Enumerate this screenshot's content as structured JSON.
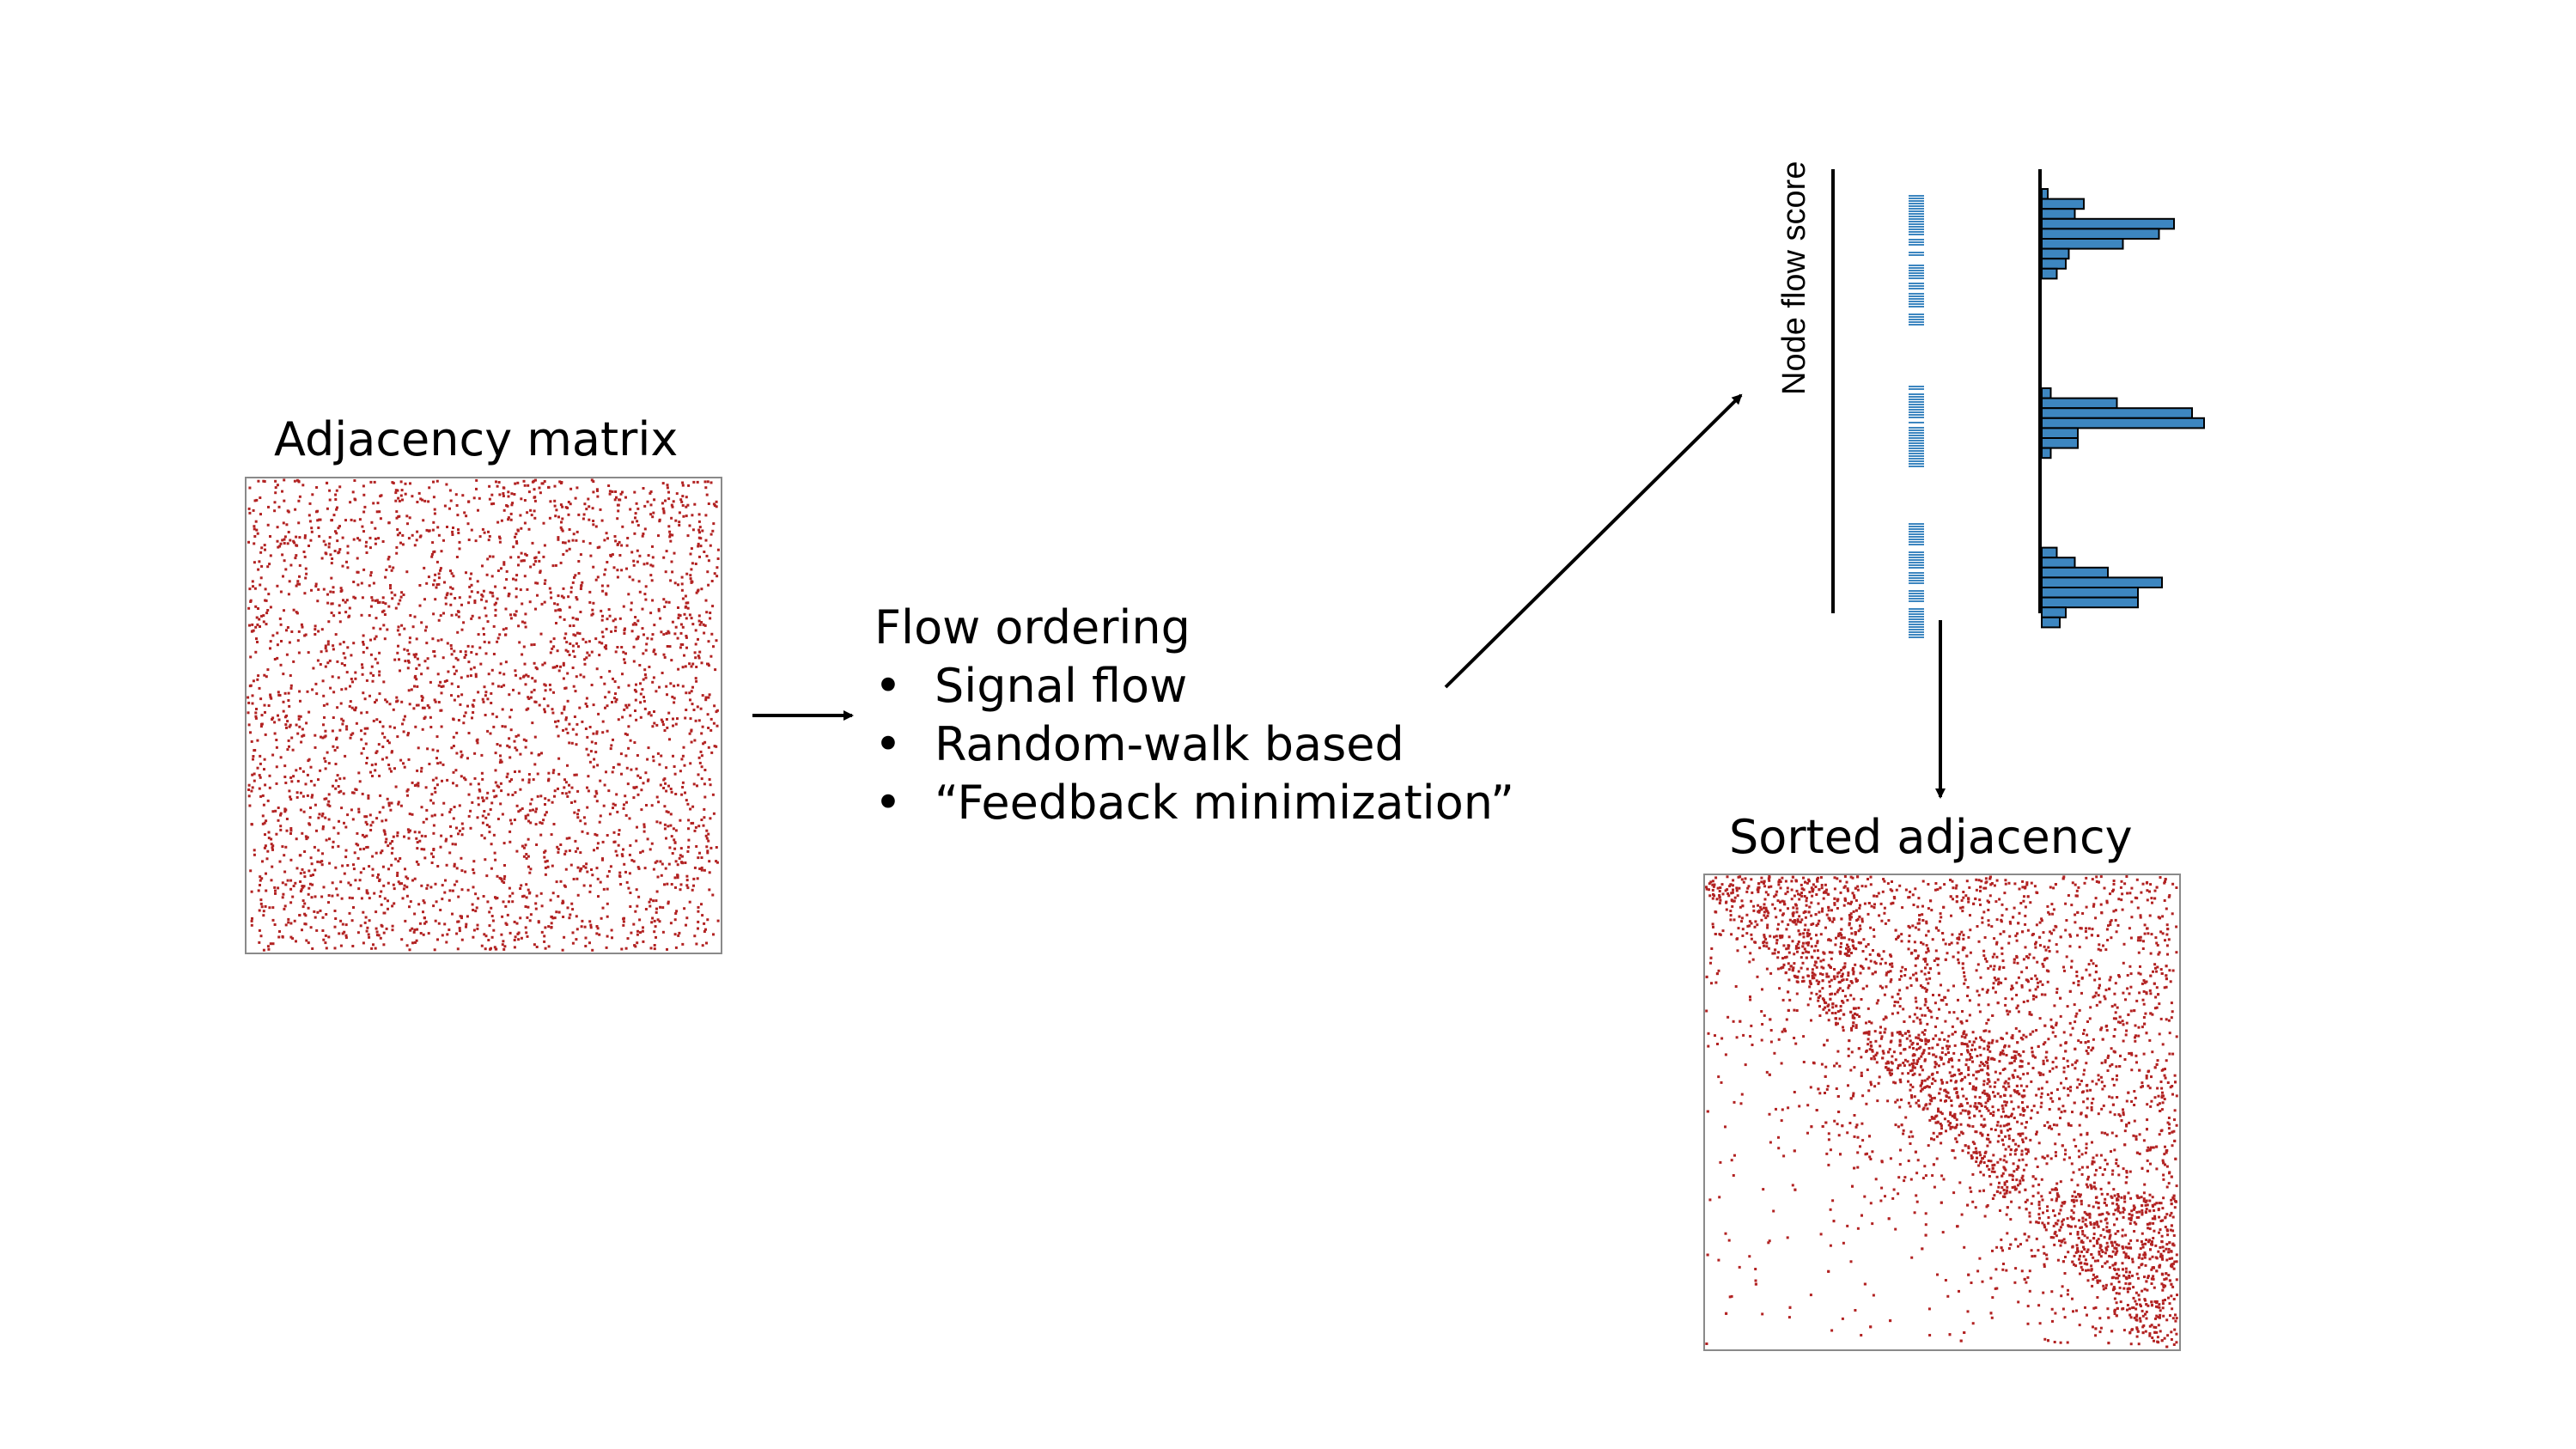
{
  "adjacency": {
    "title": "Adjacency matrix",
    "dot_color": "#b22222"
  },
  "flow": {
    "heading": "Flow ordering",
    "bullet_char": "•",
    "items": [
      "Signal flow",
      "Random-walk based",
      "“Feedback minimization”"
    ]
  },
  "scores": {
    "axis_label": "Node flow score",
    "color": "#3d86c0",
    "histogram_values": [
      2,
      14,
      11,
      44,
      39,
      27,
      9,
      8,
      5,
      0,
      0,
      0,
      0,
      0,
      0,
      0,
      0,
      0,
      0,
      0,
      3,
      25,
      50,
      54,
      12,
      12,
      3,
      0,
      0,
      0,
      0,
      0,
      0,
      0,
      0,
      0,
      5,
      11,
      22,
      40,
      32,
      32,
      8,
      6
    ]
  },
  "sorted": {
    "title": "Sorted adjacency",
    "dot_color": "#b22222"
  }
}
